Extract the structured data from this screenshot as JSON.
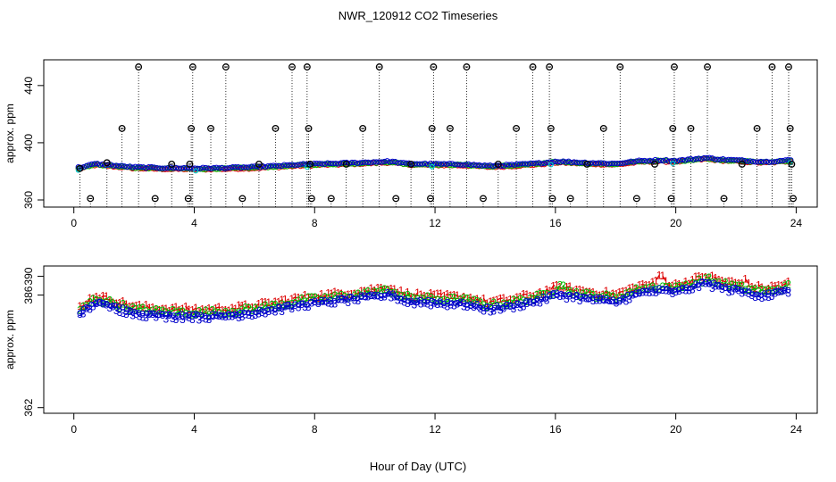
{
  "title": "NWR_120912  CO2 Timeseries",
  "xlabel": "Hour of Day (UTC)",
  "colors": {
    "series1": "#dd0000",
    "series2": "#00bb00",
    "series3": "#0000cc",
    "flask": "#000000",
    "cyan": "#00cccc"
  },
  "chart_data": [
    {
      "type": "scatter",
      "name": "top",
      "ylabel": "approx. ppm",
      "xlim": [
        -1.0,
        24.7
      ],
      "ylim": [
        355,
        458
      ],
      "xticks": [
        0,
        4,
        8,
        12,
        16,
        20,
        24
      ],
      "yticks": [
        360,
        400,
        440
      ],
      "xtick_labels": [
        "0",
        "4",
        "8",
        "12",
        "16",
        "20",
        "24"
      ],
      "ytick_labels": [
        "360",
        "400",
        "440"
      ],
      "baseline": 355,
      "flask_samples": [
        {
          "x": 0.2,
          "y": 382
        },
        {
          "x": 0.55,
          "y": 361
        },
        {
          "x": 1.1,
          "y": 386
        },
        {
          "x": 1.6,
          "y": 410
        },
        {
          "x": 2.15,
          "y": 453
        },
        {
          "x": 2.7,
          "y": 361
        },
        {
          "x": 3.25,
          "y": 385
        },
        {
          "x": 3.8,
          "y": 361
        },
        {
          "x": 3.85,
          "y": 385
        },
        {
          "x": 3.9,
          "y": 410
        },
        {
          "x": 3.95,
          "y": 453
        },
        {
          "x": 4.55,
          "y": 410
        },
        {
          "x": 5.05,
          "y": 453
        },
        {
          "x": 5.6,
          "y": 361
        },
        {
          "x": 6.15,
          "y": 385
        },
        {
          "x": 6.7,
          "y": 410
        },
        {
          "x": 7.25,
          "y": 453
        },
        {
          "x": 7.75,
          "y": 453
        },
        {
          "x": 7.8,
          "y": 410
        },
        {
          "x": 7.85,
          "y": 385
        },
        {
          "x": 7.9,
          "y": 361
        },
        {
          "x": 8.55,
          "y": 361
        },
        {
          "x": 9.05,
          "y": 385
        },
        {
          "x": 9.6,
          "y": 410
        },
        {
          "x": 10.15,
          "y": 453
        },
        {
          "x": 10.7,
          "y": 361
        },
        {
          "x": 11.2,
          "y": 385
        },
        {
          "x": 11.85,
          "y": 361
        },
        {
          "x": 11.9,
          "y": 410
        },
        {
          "x": 11.95,
          "y": 453
        },
        {
          "x": 12.5,
          "y": 410
        },
        {
          "x": 13.05,
          "y": 453
        },
        {
          "x": 13.6,
          "y": 361
        },
        {
          "x": 14.1,
          "y": 385
        },
        {
          "x": 14.7,
          "y": 410
        },
        {
          "x": 15.25,
          "y": 453
        },
        {
          "x": 15.8,
          "y": 453
        },
        {
          "x": 15.85,
          "y": 410
        },
        {
          "x": 15.9,
          "y": 361
        },
        {
          "x": 16.5,
          "y": 361
        },
        {
          "x": 17.05,
          "y": 385
        },
        {
          "x": 17.6,
          "y": 410
        },
        {
          "x": 18.15,
          "y": 453
        },
        {
          "x": 18.7,
          "y": 361
        },
        {
          "x": 19.3,
          "y": 385
        },
        {
          "x": 19.85,
          "y": 361
        },
        {
          "x": 19.9,
          "y": 410
        },
        {
          "x": 19.95,
          "y": 453
        },
        {
          "x": 20.5,
          "y": 410
        },
        {
          "x": 21.05,
          "y": 453
        },
        {
          "x": 21.6,
          "y": 361
        },
        {
          "x": 22.2,
          "y": 385
        },
        {
          "x": 22.7,
          "y": 410
        },
        {
          "x": 23.2,
          "y": 453
        },
        {
          "x": 23.75,
          "y": 453
        },
        {
          "x": 23.8,
          "y": 410
        },
        {
          "x": 23.85,
          "y": 385
        },
        {
          "x": 23.9,
          "y": 361
        }
      ],
      "continuous_knots": [
        {
          "x": 0.2,
          "y": 382.3
        },
        {
          "x": 0.7,
          "y": 384.8
        },
        {
          "x": 1.2,
          "y": 384.0
        },
        {
          "x": 2.0,
          "y": 382.5
        },
        {
          "x": 3.0,
          "y": 382.0
        },
        {
          "x": 3.8,
          "y": 381.9
        },
        {
          "x": 4.2,
          "y": 381.8
        },
        {
          "x": 5.0,
          "y": 382.0
        },
        {
          "x": 6.0,
          "y": 382.6
        },
        {
          "x": 7.0,
          "y": 383.7
        },
        {
          "x": 7.8,
          "y": 384.6
        },
        {
          "x": 8.5,
          "y": 385.0
        },
        {
          "x": 9.5,
          "y": 385.7
        },
        {
          "x": 10.5,
          "y": 386.6
        },
        {
          "x": 11.0,
          "y": 385.1
        },
        {
          "x": 12.0,
          "y": 384.7
        },
        {
          "x": 13.0,
          "y": 384.5
        },
        {
          "x": 13.8,
          "y": 383.4
        },
        {
          "x": 14.5,
          "y": 384.0
        },
        {
          "x": 15.5,
          "y": 385.3
        },
        {
          "x": 16.0,
          "y": 386.5
        },
        {
          "x": 16.3,
          "y": 386.4
        },
        {
          "x": 17.0,
          "y": 385.7
        },
        {
          "x": 18.0,
          "y": 385.0
        },
        {
          "x": 18.8,
          "y": 386.9
        },
        {
          "x": 19.5,
          "y": 387.4
        },
        {
          "x": 20.0,
          "y": 387.0
        },
        {
          "x": 21.0,
          "y": 389.0
        },
        {
          "x": 21.5,
          "y": 388.0
        },
        {
          "x": 22.5,
          "y": 386.8
        },
        {
          "x": 23.0,
          "y": 386.3
        },
        {
          "x": 23.8,
          "y": 387.5
        }
      ]
    },
    {
      "type": "line",
      "name": "bottom",
      "ylabel": "approx. ppm",
      "xlim": [
        -1.0,
        24.7
      ],
      "ylim": [
        360.8,
        392.2
      ],
      "xticks": [
        0,
        4,
        8,
        12,
        16,
        20,
        24
      ],
      "yticks": [
        362,
        386,
        390
      ],
      "xtick_labels": [
        "0",
        "4",
        "8",
        "12",
        "16",
        "20",
        "24"
      ],
      "ytick_labels": [
        "362",
        "386",
        "390"
      ],
      "series": [
        {
          "name": "1",
          "symbol": "1",
          "offset": 1.1
        },
        {
          "name": "2",
          "symbol": "2",
          "offset": 0.4
        },
        {
          "name": "3",
          "symbol": "3",
          "offset": -0.6
        }
      ],
      "spikes": [
        {
          "series": "1",
          "x": 19.5,
          "y": 390.7
        },
        {
          "series": "1",
          "x": 22.3,
          "y": 389.5
        },
        {
          "series": "2",
          "x": 16.2,
          "y": 388.6
        }
      ]
    }
  ]
}
